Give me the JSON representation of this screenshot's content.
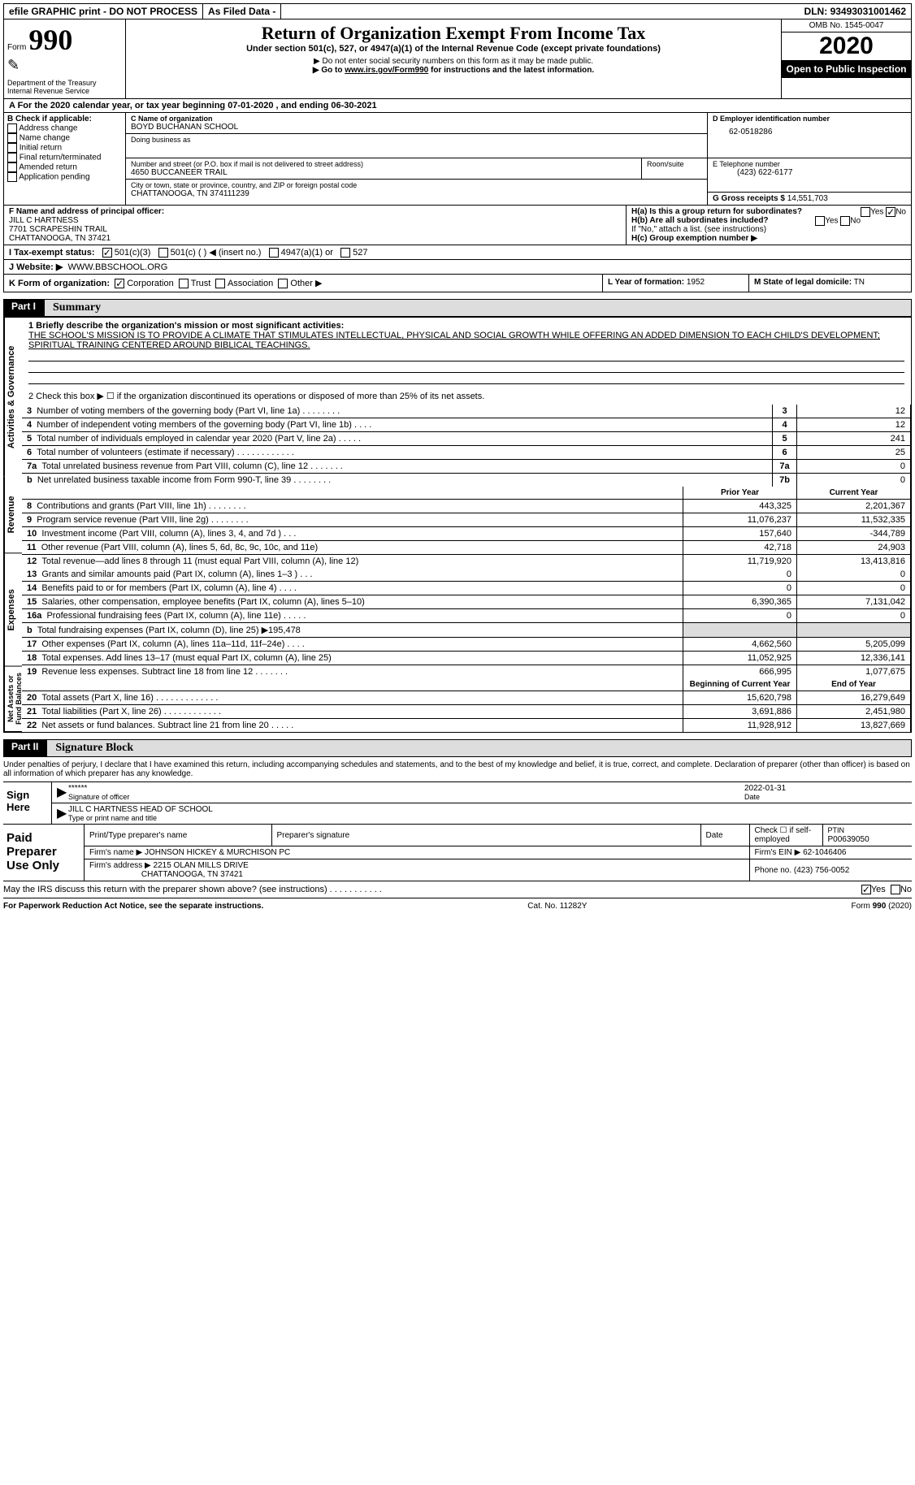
{
  "topbar": {
    "efile": "efile GRAPHIC print - DO NOT PROCESS",
    "filed": "As Filed Data -",
    "dln_label": "DLN:",
    "dln": "93493031001462"
  },
  "header": {
    "form_label": "Form",
    "form_num": "990",
    "dept": "Department of the Treasury",
    "irs": "Internal Revenue Service",
    "title": "Return of Organization Exempt From Income Tax",
    "subtitle": "Under section 501(c), 527, or 4947(a)(1) of the Internal Revenue Code (except private foundations)",
    "warn": "▶ Do not enter social security numbers on this form as it may be made public.",
    "goto": "▶ Go to www.irs.gov/Form990 for instructions and the latest information.",
    "omb": "OMB No. 1545-0047",
    "year": "2020",
    "open": "Open to Public Inspection"
  },
  "rowA": "A  For the 2020 calendar year, or tax year beginning 07-01-2020  , and ending 06-30-2021",
  "B": {
    "label": "B Check if applicable:",
    "items": [
      "Address change",
      "Name change",
      "Initial return",
      "Final return/terminated",
      "Amended return",
      "Application pending"
    ]
  },
  "C": {
    "name_label": "C Name of organization",
    "name": "BOYD BUCHANAN SCHOOL",
    "dba_label": "Doing business as",
    "addr_label": "Number and street (or P.O. box if mail is not delivered to street address)",
    "room_label": "Room/suite",
    "addr": "4650 BUCCANEER TRAIL",
    "city_label": "City or town, state or province, country, and ZIP or foreign postal code",
    "city": "CHATTANOOGA, TN  374111239"
  },
  "D": {
    "label": "D Employer identification number",
    "val": "62-0518286"
  },
  "E": {
    "label": "E Telephone number",
    "val": "(423) 622-6177"
  },
  "G": {
    "label": "G Gross receipts $",
    "val": "14,551,703"
  },
  "F": {
    "label": "F  Name and address of principal officer:",
    "name": "JILL C HARTNESS",
    "addr1": "7701 SCRAPESHIN TRAIL",
    "addr2": "CHATTANOOGA, TN  37421"
  },
  "H": {
    "a": "H(a)  Is this a group return for subordinates?",
    "b": "H(b)  Are all subordinates included?",
    "bnote": "If \"No,\" attach a list. (see instructions)",
    "c": "H(c)  Group exemption number ▶",
    "yes": "Yes",
    "no": "No"
  },
  "I": {
    "label": "I  Tax-exempt status:",
    "opts": [
      "501(c)(3)",
      "501(c) (   ) ◀ (insert no.)",
      "4947(a)(1) or",
      "527"
    ]
  },
  "J": {
    "label": "J  Website: ▶",
    "val": "WWW.BBSCHOOL.ORG"
  },
  "K": {
    "label": "K Form of organization:",
    "opts": [
      "Corporation",
      "Trust",
      "Association",
      "Other ▶"
    ]
  },
  "L": {
    "label": "L Year of formation:",
    "val": "1952"
  },
  "M": {
    "label": "M State of legal domicile:",
    "val": "TN"
  },
  "partI": {
    "tab": "Part I",
    "title": "Summary"
  },
  "summary": {
    "l1a": "1 Briefly describe the organization's mission or most significant activities:",
    "l1b": "THE SCHOOL'S MISSION IS TO PROVIDE A CLIMATE THAT STIMULATES INTELLECTUAL, PHYSICAL AND SOCIAL GROWTH WHILE OFFERING AN ADDED DIMENSION TO EACH CHILD'S DEVELOPMENT; SPIRITUAL TRAINING CENTERED AROUND BIBLICAL TEACHINGS.",
    "l2": "2  Check this box ▶ ☐ if the organization discontinued its operations or disposed of more than 25% of its net assets.",
    "rows37": [
      {
        "n": "3",
        "d": "Number of voting members of the governing body (Part VI, line 1a)  .   .   .   .   .   .   .   .",
        "ln": "3",
        "v": "12"
      },
      {
        "n": "4",
        "d": "Number of independent voting members of the governing body (Part VI, line 1b)   .   .   .   .",
        "ln": "4",
        "v": "12"
      },
      {
        "n": "5",
        "d": "Total number of individuals employed in calendar year 2020 (Part V, line 2a)   .   .   .   .   .",
        "ln": "5",
        "v": "241"
      },
      {
        "n": "6",
        "d": "Total number of volunteers (estimate if necessary)   .   .   .   .   .   .   .   .   .   .   .   .",
        "ln": "6",
        "v": "25"
      },
      {
        "n": "7a",
        "d": "Total unrelated business revenue from Part VIII, column (C), line 12   .   .   .   .   .   .   .",
        "ln": "7a",
        "v": "0"
      },
      {
        "n": "b",
        "d": "Net unrelated business taxable income from Form 990-T, line 39   .   .   .   .   .   .   .   .",
        "ln": "7b",
        "v": "0"
      }
    ],
    "prior": "Prior Year",
    "current": "Current Year",
    "revenue": [
      {
        "n": "8",
        "d": "Contributions and grants (Part VIII, line 1h)   .   .   .   .   .   .   .   .",
        "p": "443,325",
        "c": "2,201,367"
      },
      {
        "n": "9",
        "d": "Program service revenue (Part VIII, line 2g)   .   .   .   .   .   .   .   .",
        "p": "11,076,237",
        "c": "11,532,335"
      },
      {
        "n": "10",
        "d": "Investment income (Part VIII, column (A), lines 3, 4, and 7d )   .   .   .",
        "p": "157,640",
        "c": "-344,789"
      },
      {
        "n": "11",
        "d": "Other revenue (Part VIII, column (A), lines 5, 6d, 8c, 9c, 10c, and 11e)",
        "p": "42,718",
        "c": "24,903"
      },
      {
        "n": "12",
        "d": "Total revenue—add lines 8 through 11 (must equal Part VIII, column (A), line 12)",
        "p": "11,719,920",
        "c": "13,413,816"
      }
    ],
    "expenses": [
      {
        "n": "13",
        "d": "Grants and similar amounts paid (Part IX, column (A), lines 1–3 )   .   .   .",
        "p": "0",
        "c": "0"
      },
      {
        "n": "14",
        "d": "Benefits paid to or for members (Part IX, column (A), line 4)   .   .   .   .",
        "p": "0",
        "c": "0"
      },
      {
        "n": "15",
        "d": "Salaries, other compensation, employee benefits (Part IX, column (A), lines 5–10)",
        "p": "6,390,365",
        "c": "7,131,042"
      },
      {
        "n": "16a",
        "d": "Professional fundraising fees (Part IX, column (A), line 11e)   .   .   .   .   .",
        "p": "0",
        "c": "0"
      },
      {
        "n": "b",
        "d": "Total fundraising expenses (Part IX, column (D), line 25) ▶195,478",
        "p": "",
        "c": "",
        "shade": true
      },
      {
        "n": "17",
        "d": "Other expenses (Part IX, column (A), lines 11a–11d, 11f–24e)   .   .   .   .",
        "p": "4,662,560",
        "c": "5,205,099"
      },
      {
        "n": "18",
        "d": "Total expenses. Add lines 13–17 (must equal Part IX, column (A), line 25)",
        "p": "11,052,925",
        "c": "12,336,141"
      },
      {
        "n": "19",
        "d": "Revenue less expenses. Subtract line 18 from line 12   .   .   .   .   .   .   .",
        "p": "666,995",
        "c": "1,077,675"
      }
    ],
    "begin": "Beginning of Current Year",
    "end": "End of Year",
    "netassets": [
      {
        "n": "20",
        "d": "Total assets (Part X, line 16)   .   .   .   .   .   .   .   .   .   .   .   .   .",
        "p": "15,620,798",
        "c": "16,279,649"
      },
      {
        "n": "21",
        "d": "Total liabilities (Part X, line 26)   .   .   .   .   .   .   .   .   .   .   .   .",
        "p": "3,691,886",
        "c": "2,451,980"
      },
      {
        "n": "22",
        "d": "Net assets or fund balances. Subtract line 21 from line 20   .   .   .   .   .",
        "p": "11,928,912",
        "c": "13,827,669"
      }
    ]
  },
  "vtabs": {
    "ag": "Activities & Governance",
    "rev": "Revenue",
    "exp": "Expenses",
    "na": "Net Assets or Fund Balances"
  },
  "partII": {
    "tab": "Part II",
    "title": "Signature Block"
  },
  "sig": {
    "decl": "Under penalties of perjury, I declare that I have examined this return, including accompanying schedules and statements, and to the best of my knowledge and belief, it is true, correct, and complete. Declaration of preparer (other than officer) is based on all information of which preparer has any knowledge.",
    "signhere": "Sign Here",
    "stars": "******",
    "sigoff": "Signature of officer",
    "date": "2022-01-31",
    "datelabel": "Date",
    "name": "JILL C HARTNESS  HEAD OF SCHOOL",
    "typelabel": "Type or print name and title"
  },
  "prep": {
    "label": "Paid Preparer Use Only",
    "h1": "Print/Type preparer's name",
    "h2": "Preparer's signature",
    "h3": "Date",
    "h4": "Check ☐ if self-employed",
    "h5l": "PTIN",
    "h5": "P00639050",
    "firm_label": "Firm's name    ▶",
    "firm": "JOHNSON HICKEY & MURCHISON PC",
    "ein_label": "Firm's EIN ▶",
    "ein": "62-1046406",
    "addr_label": "Firm's address ▶",
    "addr1": "2215 OLAN MILLS DRIVE",
    "addr2": "CHATTANOOGA, TN  37421",
    "phone_label": "Phone no.",
    "phone": "(423) 756-0052"
  },
  "discuss": {
    "q": "May the IRS discuss this return with the preparer shown above? (see instructions)   .   .   .   .   .   .   .   .   .   .   .",
    "yes": "Yes",
    "no": "No"
  },
  "footer": {
    "left": "For Paperwork Reduction Act Notice, see the separate instructions.",
    "mid": "Cat. No. 11282Y",
    "right": "Form 990 (2020)"
  }
}
